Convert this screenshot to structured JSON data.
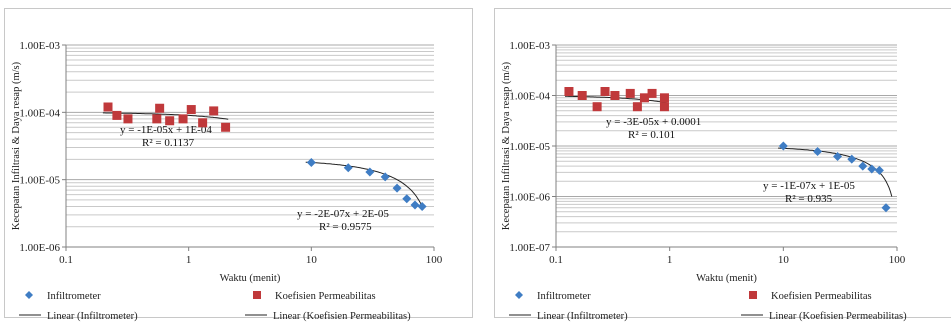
{
  "chart_data": [
    {
      "type": "scatter",
      "x_scale": "log",
      "y_scale": "log",
      "xlim": [
        0.1,
        100
      ],
      "ylim": [
        1e-06,
        0.001
      ],
      "xlabel": "Waktu (menit)",
      "ylabel": "Kecepatan Infiltrasi  & Daya resap (m/s)",
      "x_ticks": [
        "0.1",
        "1",
        "10",
        "100"
      ],
      "y_ticks": [
        "1.00E-06",
        "1.00E-05",
        "1.00E-04",
        "1.00E-03"
      ],
      "grid": "horizontal",
      "legend": "bottom",
      "series": [
        {
          "name": "Infiltrometer",
          "color": "#3f7dc4",
          "marker": "diamond",
          "x": [
            10,
            20,
            30,
            40,
            50,
            60,
            70,
            80
          ],
          "y": [
            1.8e-05,
            1.5e-05,
            1.3e-05,
            1.1e-05,
            7.5e-06,
            5.2e-06,
            4.2e-06,
            4e-06
          ]
        },
        {
          "name": "Koefisien Permeabilitas",
          "color": "#c0393b",
          "marker": "square",
          "x": [
            0.22,
            0.26,
            0.32,
            0.55,
            0.58,
            0.7,
            0.9,
            1.05,
            1.3,
            1.6,
            2.0
          ],
          "y": [
            0.00012,
            9e-05,
            8e-05,
            8e-05,
            0.000115,
            7.5e-05,
            8e-05,
            0.00011,
            7e-05,
            0.000105,
            6e-05
          ]
        }
      ],
      "trendlines": [
        {
          "name": "Linear (Infiltrometer)",
          "slope": -2e-07,
          "intercept": 2e-05,
          "x_range": [
            9,
            82
          ],
          "equation": "y = -2E-07x + 2E-05",
          "r2": "R² = 0.9575"
        },
        {
          "name": "Linear (Koefisien Permeabilitas)",
          "slope": -1e-05,
          "intercept": 0.0001,
          "x_range": [
            0.2,
            2.1
          ],
          "equation": "y = -1E-05x + 1E-04",
          "r2": "R² = 0.1137"
        }
      ]
    },
    {
      "type": "scatter",
      "x_scale": "log",
      "y_scale": "log",
      "xlim": [
        0.1,
        100
      ],
      "ylim": [
        1e-07,
        0.001
      ],
      "xlabel": "Waktu (menit)",
      "ylabel": "Kecepatan Infiltrasi  & Daya resap (m/s)",
      "x_ticks": [
        "0.1",
        "1",
        "10",
        "100"
      ],
      "y_ticks": [
        "1.00E-07",
        "1.00E-06",
        "1.00E-05",
        "1.00E-04",
        "1.00E-03"
      ],
      "grid": "horizontal",
      "legend": "bottom",
      "series": [
        {
          "name": "Infiltrometer",
          "color": "#3f7dc4",
          "marker": "diamond",
          "x": [
            10,
            20,
            30,
            40,
            50,
            60,
            70,
            80
          ],
          "y": [
            1e-05,
            7.8e-06,
            6.2e-06,
            5.5e-06,
            4e-06,
            3.5e-06,
            3.3e-06,
            6e-07
          ]
        },
        {
          "name": "Koefisien Permeabilitas",
          "color": "#c0393b",
          "marker": "square",
          "x": [
            0.13,
            0.17,
            0.23,
            0.27,
            0.33,
            0.45,
            0.52,
            0.6,
            0.7,
            0.9,
            0.9
          ],
          "y": [
            0.00012,
            0.0001,
            6e-05,
            0.00012,
            0.0001,
            0.00011,
            6e-05,
            9e-05,
            0.00011,
            9e-05,
            6e-05
          ]
        }
      ],
      "trendlines": [
        {
          "name": "Linear (Infiltrometer)",
          "slope": -1e-07,
          "intercept": 1e-05,
          "x_range": [
            9,
            90
          ],
          "equation": "y = -1E-07x + 1E-05",
          "r2": "R² = 0.935"
        },
        {
          "name": "Linear (Koefisien Permeabilitas)",
          "slope": -3e-05,
          "intercept": 0.0001,
          "x_range": [
            0.12,
            0.95
          ],
          "equation": "y = -3E-05x + 0.0001",
          "r2": "R² = 0.101"
        }
      ]
    }
  ]
}
